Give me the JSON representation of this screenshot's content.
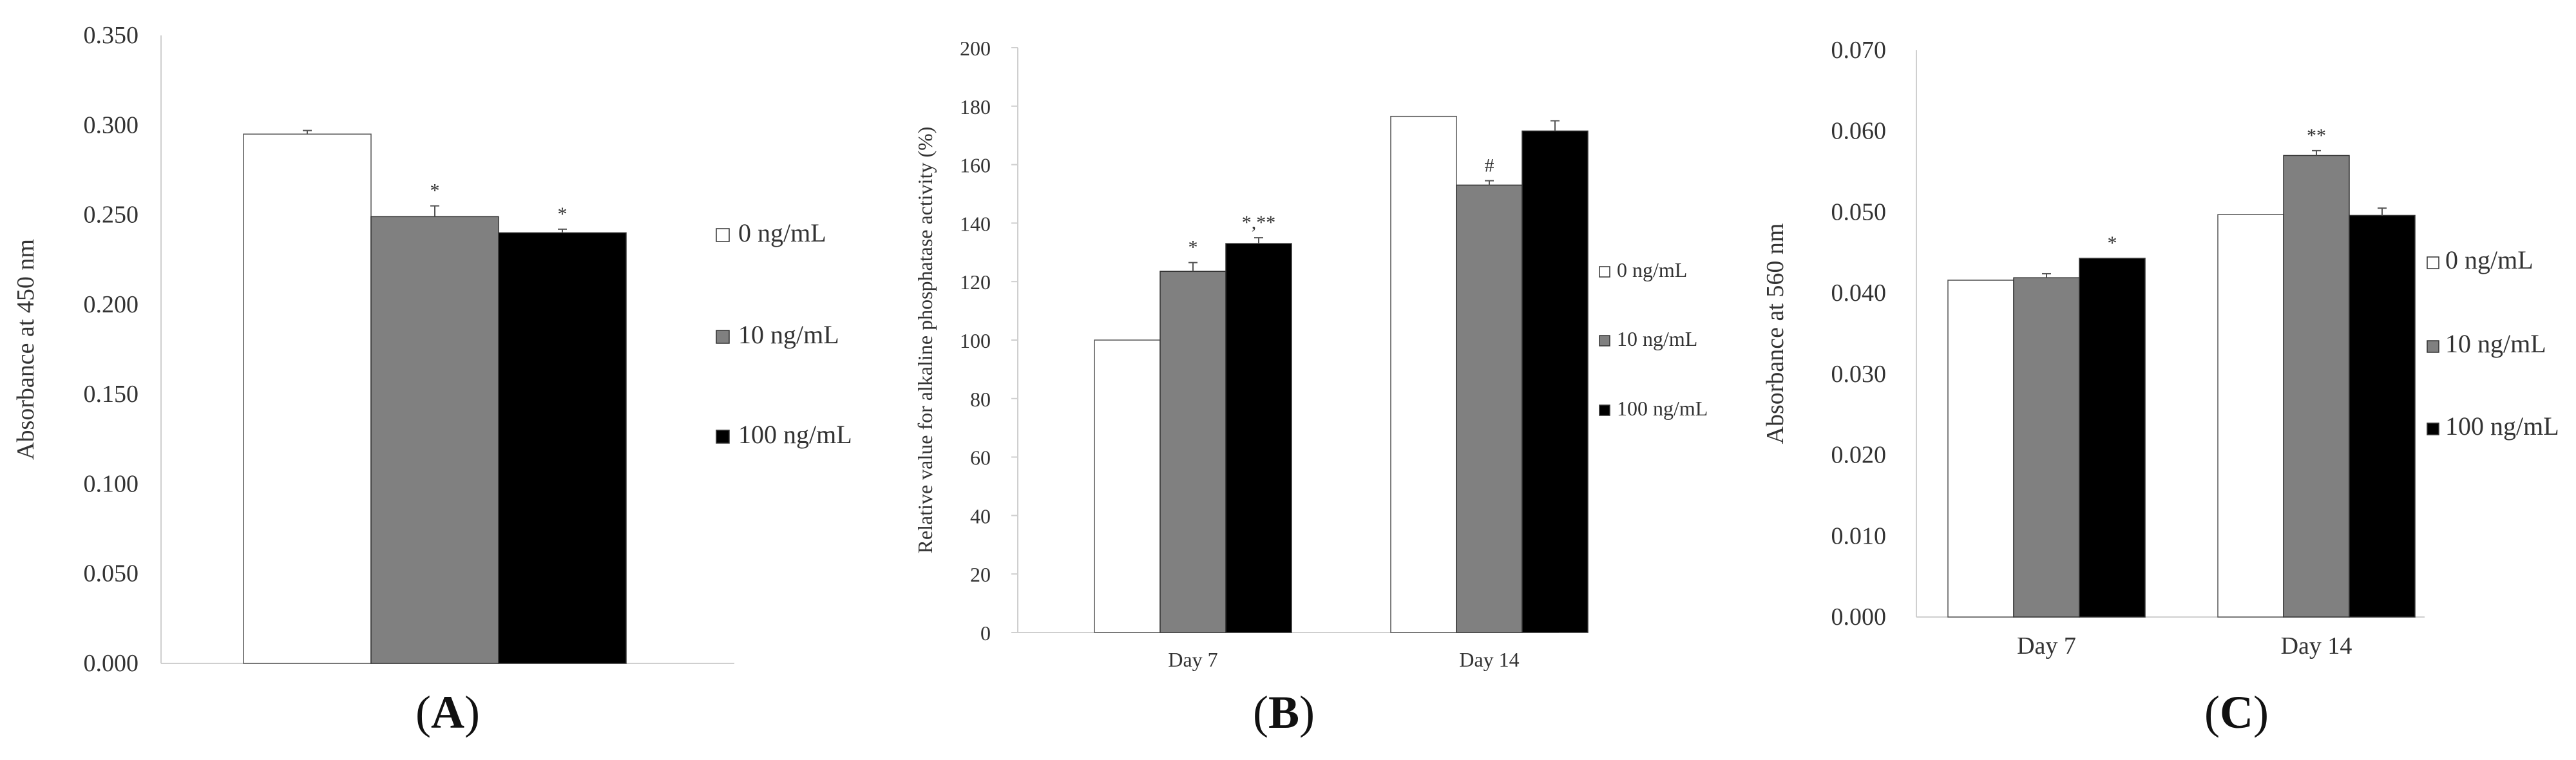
{
  "chart_data": [
    {
      "type": "bar",
      "panel": "A",
      "panel_letter": "A",
      "ylabel": "Absorbance at 450 nm",
      "xlabel": "",
      "ylim": [
        0,
        0.35
      ],
      "yticks": [
        "0.000",
        "0.050",
        "0.100",
        "0.150",
        "0.200",
        "0.250",
        "0.300",
        "0.350"
      ],
      "categories": [
        ""
      ],
      "series": [
        {
          "name": "0 ng/mL",
          "color": "#ffffff",
          "values": [
            0.295
          ],
          "errors": [
            0.002
          ],
          "annotations": [
            ""
          ]
        },
        {
          "name": "10 ng/mL",
          "color": "#808080",
          "values": [
            0.249
          ],
          "errors": [
            0.006
          ],
          "annotations": [
            "*"
          ]
        },
        {
          "name": "100 ng/mL",
          "color": "#000000",
          "values": [
            0.24
          ],
          "errors": [
            0.002
          ],
          "annotations": [
            "*"
          ]
        }
      ]
    },
    {
      "type": "bar",
      "panel": "B",
      "panel_letter": "B",
      "ylabel": "Relative value for alkaline phosphatase activity (%)",
      "xlabel": "",
      "ylim": [
        0,
        200
      ],
      "yticks": [
        "0",
        "20",
        "40",
        "60",
        "80",
        "100",
        "120",
        "140",
        "160",
        "180",
        "200"
      ],
      "categories": [
        "Day 7",
        "Day 14"
      ],
      "series": [
        {
          "name": "0 ng/mL",
          "color": "#ffffff",
          "values": [
            100,
            176.5
          ],
          "errors": [
            0,
            0
          ],
          "annotations": [
            "",
            ""
          ]
        },
        {
          "name": "10 ng/mL",
          "color": "#808080",
          "values": [
            123.5,
            153
          ],
          "errors": [
            3,
            1.5
          ],
          "annotations": [
            "*",
            "#"
          ]
        },
        {
          "name": "100 ng/mL",
          "color": "#000000",
          "values": [
            133,
            171.5
          ],
          "errors": [
            2,
            3.5
          ],
          "annotations": [
            "*,**",
            ""
          ]
        }
      ]
    },
    {
      "type": "bar",
      "panel": "C",
      "panel_letter": "C",
      "ylabel": "Absorbance at 560 nm",
      "xlabel": "",
      "ylim": [
        0,
        0.07
      ],
      "yticks": [
        "0.000",
        "0.010",
        "0.020",
        "0.030",
        "0.040",
        "0.050",
        "0.060",
        "0.070"
      ],
      "categories": [
        "Day 7",
        "Day 14"
      ],
      "series": [
        {
          "name": "0 ng/mL",
          "color": "#ffffff",
          "values": [
            0.0416,
            0.0497
          ],
          "errors": [
            0,
            0
          ],
          "annotations": [
            "",
            ""
          ]
        },
        {
          "name": "10 ng/mL",
          "color": "#808080",
          "values": [
            0.0419,
            0.057
          ],
          "errors": [
            0.0005,
            0.0006
          ],
          "annotations": [
            "",
            "**"
          ]
        },
        {
          "name": "100 ng/mL",
          "color": "#000000",
          "values": [
            0.0443,
            0.0496
          ],
          "errors": [
            0,
            0.0009
          ],
          "annotations": [
            "*",
            ""
          ]
        }
      ]
    }
  ]
}
